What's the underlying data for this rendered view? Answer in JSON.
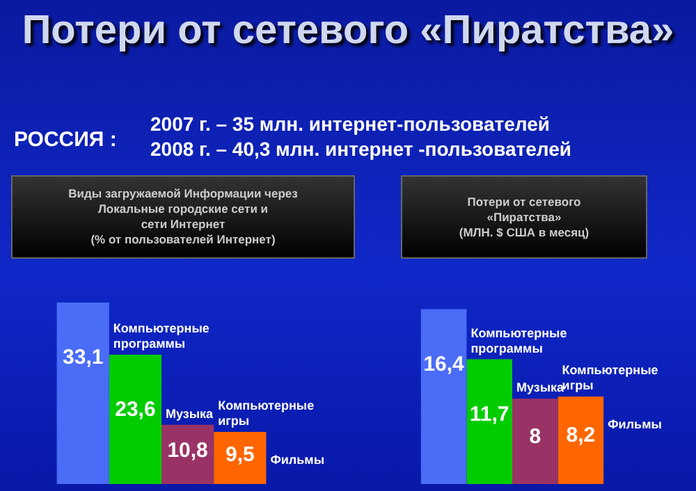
{
  "chart_data": [
    {
      "type": "bar",
      "title": "Виды загружаемой Информации через\nЛокальные городские сети и\nсети Интернет\n(% от пользователей Интернет)",
      "annotations": [
        "Потери от сетевого «Пиратства»",
        "РОССИЯ :",
        "2007 г. – 35 млн. интернет-пользователей",
        "2008 г. – 40,3 млн. интернет -пользователей"
      ],
      "categories": [
        null
      ],
      "series": [
        {
          "name": "Компьютерные программы",
          "color": "#4a6cf7",
          "values": [
            33.1
          ],
          "value_labels": [
            "33,1"
          ]
        },
        {
          "name": "Музыка",
          "color": "#00cc00",
          "values": [
            23.6
          ],
          "value_labels": [
            "23,6"
          ]
        },
        {
          "name": "Компьютерные игры",
          "color": "#993366",
          "values": [
            10.8
          ],
          "value_labels": [
            "10,8"
          ]
        },
        {
          "name": "Фильмы",
          "color": "#ff6600",
          "values": [
            9.5
          ],
          "value_labels": [
            "9,5"
          ]
        }
      ]
    },
    {
      "type": "bar",
      "title": "Потери от сетевого\n«Пиратства»\n(МЛН. $ США в месяц)",
      "categories": [
        null
      ],
      "series": [
        {
          "name": "Компьютерные программы",
          "color": "#4a6cf7",
          "values": [
            16.4
          ],
          "value_labels": [
            "16,4"
          ]
        },
        {
          "name": "Музыка",
          "color": "#00cc00",
          "values": [
            11.7
          ],
          "value_labels": [
            "11,7"
          ]
        },
        {
          "name": "Компьютерные игры",
          "color": "#993366",
          "values": [
            8
          ],
          "value_labels": [
            "8"
          ]
        },
        {
          "name": "Фильмы",
          "color": "#ff6600",
          "values": [
            8.2
          ],
          "value_labels": [
            "8,2"
          ]
        }
      ]
    }
  ]
}
